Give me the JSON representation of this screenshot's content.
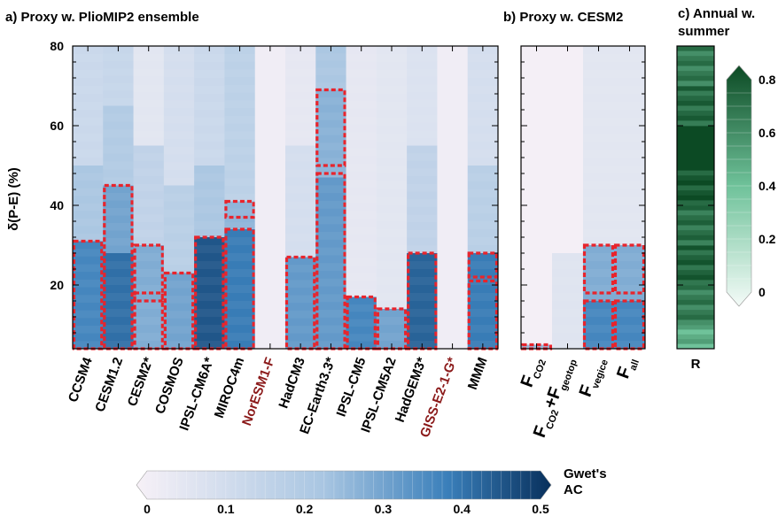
{
  "figure": {
    "panel_a_title": "a) Proxy w. PlioMIP2 ensemble",
    "panel_b_title": "b) Proxy w. CESM2",
    "panel_c_title_1": "c) Annual w.",
    "panel_c_title_2": "summer",
    "colorbar_main_label_1": "Gwet's",
    "colorbar_main_label_2": "AC",
    "panel_c_xlabel": "R"
  },
  "colors": {
    "gwet_low": "#f7f1f7",
    "gwet_mid": "#a9c6e2",
    "gwet_high": "#08305c",
    "r_low": "#f4fbf8",
    "r_high": "#0c4a24",
    "box": "#e8242c",
    "highlight_label": "#8b1a1a"
  },
  "chart_data": [
    {
      "type": "heatmap",
      "title": "a) Proxy w. PlioMIP2 ensemble",
      "ylabel": "δ(P-E) (%)",
      "ylim": [
        4,
        80
      ],
      "yticks": [
        20,
        40,
        60,
        80
      ],
      "categories": [
        "CCSM4",
        "CESM1.2",
        "CESM2*",
        "COSMOS",
        "IPSL-CM6A*",
        "MIROC4m",
        "NorESM1-F",
        "HadCM3",
        "EC-Earth3.3*",
        "IPSL-CM5",
        "IPSL-CM5A2",
        "HadGEM3*",
        "GISS-E2-1-G*",
        "MMM"
      ],
      "highlighted_categories": [
        "NorESM1-F",
        "GISS-E2-1-G*"
      ],
      "value_units": "Gwet's AC",
      "series": [
        {
          "name": "CCSM4",
          "values": [
            [
              4,
              31,
              0.36
            ],
            [
              31,
              50,
              0.22
            ],
            [
              50,
              80,
              0.13
            ]
          ],
          "boxes": [
            [
              4,
              31
            ]
          ]
        },
        {
          "name": "CESM1.2",
          "values": [
            [
              4,
              28,
              0.4
            ],
            [
              28,
              45,
              0.3
            ],
            [
              45,
              65,
              0.2
            ],
            [
              65,
              80,
              0.14
            ]
          ],
          "boxes": [
            [
              4,
              45
            ]
          ]
        },
        {
          "name": "CESM2*",
          "values": [
            [
              4,
              30,
              0.28
            ],
            [
              30,
              55,
              0.16
            ],
            [
              55,
              80,
              0.06
            ]
          ],
          "boxes": [
            [
              4,
              30
            ],
            [
              16,
              18
            ]
          ]
        },
        {
          "name": "COSMOS",
          "values": [
            [
              4,
              23,
              0.3
            ],
            [
              23,
              45,
              0.18
            ],
            [
              45,
              80,
              0.1
            ]
          ],
          "boxes": [
            [
              4,
              23
            ]
          ]
        },
        {
          "name": "IPSL-CM6A*",
          "values": [
            [
              4,
              32,
              0.44
            ],
            [
              32,
              50,
              0.22
            ],
            [
              50,
              80,
              0.13
            ]
          ],
          "boxes": [
            [
              4,
              32
            ]
          ]
        },
        {
          "name": "MIROC4m",
          "values": [
            [
              4,
              34,
              0.38
            ],
            [
              34,
              41,
              0.26
            ],
            [
              41,
              80,
              0.17
            ]
          ],
          "boxes": [
            [
              4,
              34
            ],
            [
              37,
              41
            ]
          ]
        },
        {
          "name": "NorESM1-F",
          "values": [
            [
              4,
              80,
              0.02
            ]
          ],
          "boxes": []
        },
        {
          "name": "HadCM3",
          "values": [
            [
              4,
              27,
              0.32
            ],
            [
              27,
              55,
              0.1
            ],
            [
              55,
              80,
              0.05
            ]
          ],
          "boxes": [
            [
              4,
              27
            ]
          ]
        },
        {
          "name": "EC-Earth3.3*",
          "values": [
            [
              4,
              47,
              0.32
            ],
            [
              47,
              50,
              0.26
            ],
            [
              50,
              69,
              0.27
            ],
            [
              69,
              80,
              0.22
            ]
          ],
          "boxes": [
            [
              4,
              48
            ],
            [
              50,
              69
            ]
          ]
        },
        {
          "name": "IPSL-CM5",
          "values": [
            [
              4,
              17,
              0.36
            ],
            [
              17,
              80,
              0.05
            ]
          ],
          "boxes": [
            [
              4,
              17
            ]
          ]
        },
        {
          "name": "IPSL-CM5A2",
          "values": [
            [
              4,
              14,
              0.3
            ],
            [
              14,
              80,
              0.06
            ]
          ],
          "boxes": [
            [
              4,
              14
            ]
          ]
        },
        {
          "name": "HadGEM3*",
          "values": [
            [
              4,
              28,
              0.42
            ],
            [
              28,
              55,
              0.16
            ],
            [
              55,
              80,
              0.08
            ]
          ],
          "boxes": [
            [
              4,
              28
            ]
          ]
        },
        {
          "name": "GISS-E2-1-G*",
          "values": [
            [
              4,
              80,
              0.02
            ]
          ],
          "boxes": []
        },
        {
          "name": "MMM",
          "values": [
            [
              4,
              28,
              0.38
            ],
            [
              28,
              50,
              0.18
            ],
            [
              50,
              80,
              0.1
            ]
          ],
          "boxes": [
            [
              4,
              21
            ],
            [
              22,
              28
            ]
          ]
        }
      ]
    },
    {
      "type": "heatmap",
      "title": "b) Proxy w. CESM2",
      "ylim": [
        4,
        80
      ],
      "categories": [
        "F_CO2",
        "F_CO2+F_geotop",
        "F_vegice",
        "F_all"
      ],
      "category_labels": [
        {
          "main": "F",
          "sub": "CO2"
        },
        {
          "main": "F",
          "sub": "CO2",
          "mid": "+F",
          "sub2": "geotop"
        },
        {
          "main": "F",
          "sub": "vegice"
        },
        {
          "main": "F",
          "sub": "all"
        }
      ],
      "series": [
        {
          "name": "F_CO2",
          "values": [
            [
              4,
              5,
              0.25
            ],
            [
              5,
              80,
              0.01
            ]
          ],
          "boxes": [
            [
              4,
              5
            ]
          ]
        },
        {
          "name": "F_CO2+F_geotop",
          "values": [
            [
              4,
              28,
              0.07
            ],
            [
              28,
              80,
              0.01
            ]
          ],
          "boxes": []
        },
        {
          "name": "F_vegice",
          "values": [
            [
              4,
              16,
              0.36
            ],
            [
              16,
              30,
              0.28
            ],
            [
              30,
              80,
              0.06
            ]
          ],
          "boxes": [
            [
              4,
              16
            ],
            [
              18,
              30
            ]
          ]
        },
        {
          "name": "F_all",
          "values": [
            [
              4,
              16,
              0.36
            ],
            [
              16,
              30,
              0.28
            ],
            [
              30,
              80,
              0.06
            ]
          ],
          "boxes": [
            [
              4,
              16
            ],
            [
              18,
              30
            ]
          ]
        }
      ]
    },
    {
      "type": "heatmap",
      "title": "c) Annual w. summer",
      "xlabel": "R",
      "ylim": [
        4,
        80
      ],
      "value_units": "R",
      "values": [
        [
          4,
          10,
          0.45
        ],
        [
          10,
          20,
          0.62
        ],
        [
          20,
          30,
          0.7
        ],
        [
          30,
          40,
          0.66
        ],
        [
          40,
          50,
          0.74
        ],
        [
          50,
          60,
          0.86
        ],
        [
          60,
          70,
          0.68
        ],
        [
          70,
          80,
          0.62
        ]
      ]
    }
  ],
  "colorbars": {
    "gwet": {
      "min": 0,
      "max": 0.5,
      "ticks": [
        "0",
        "0.1",
        "0.2",
        "0.3",
        "0.4",
        "0.5"
      ],
      "label": "Gwet's AC"
    },
    "r": {
      "min": 0,
      "max": 0.8,
      "ticks": [
        "0.8",
        "0.6",
        "0.4",
        "0.2",
        "0"
      ]
    }
  }
}
